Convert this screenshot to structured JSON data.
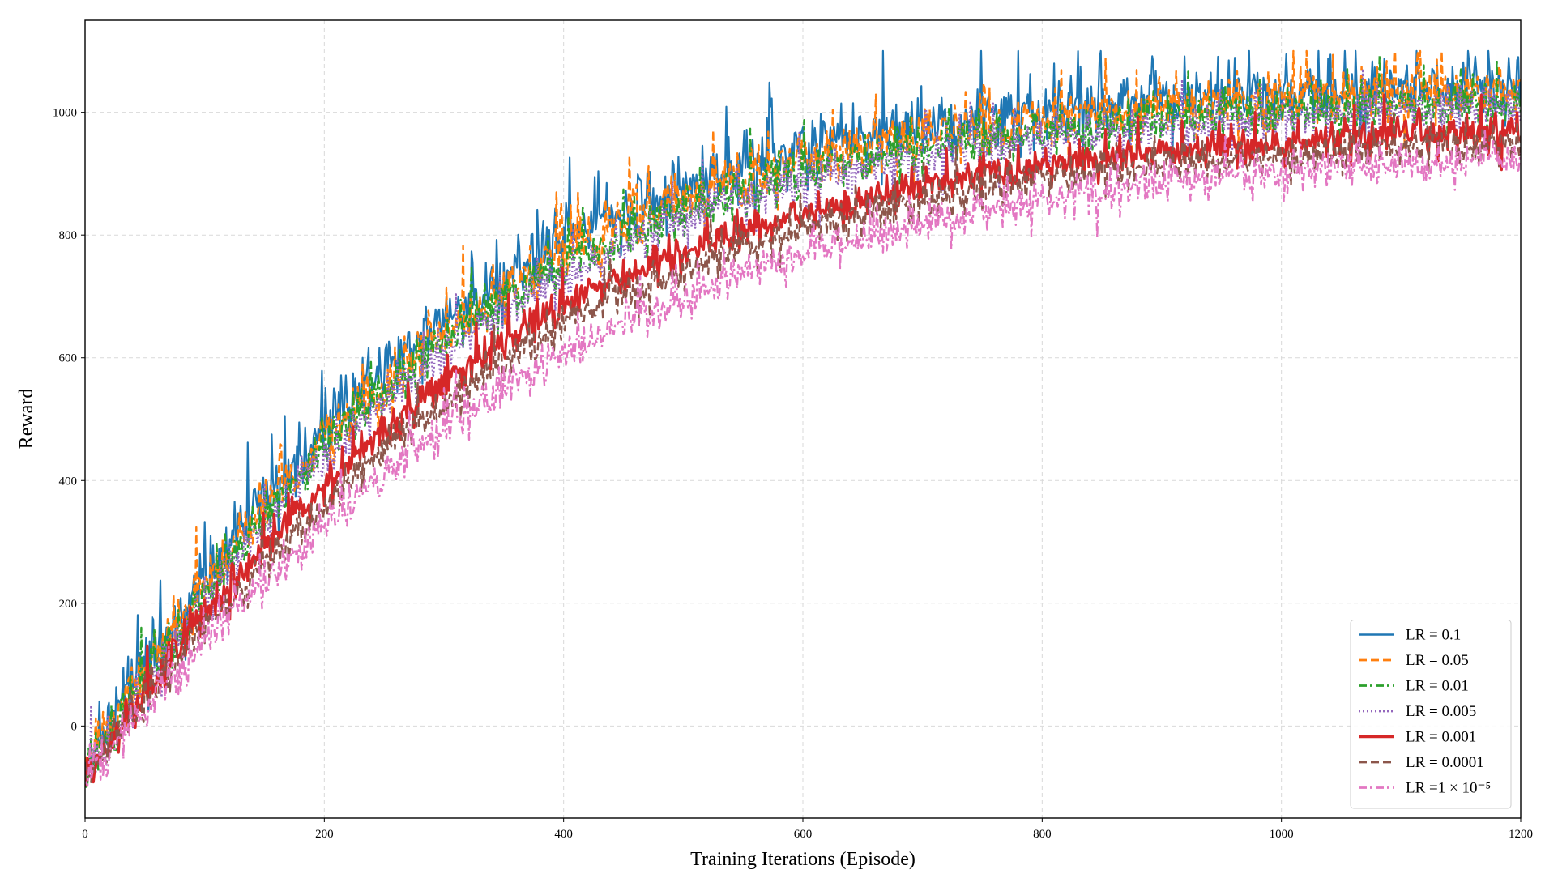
{
  "chart_data": {
    "type": "line",
    "title": "",
    "xlabel": "Training Iterations (Episode)",
    "ylabel": "Reward",
    "xlim": [
      0,
      1200
    ],
    "ylim": [
      -150,
      1150
    ],
    "xticks": [
      0,
      200,
      400,
      600,
      800,
      1000,
      1200
    ],
    "yticks": [
      0,
      200,
      400,
      600,
      800,
      1000
    ],
    "grid": true,
    "legend_position": "lower-right",
    "colors": {
      "axis": "#000000",
      "grid": "#d9d9d9",
      "legend_border": "#cccccc"
    },
    "series": [
      {
        "name": "LR = 0.1",
        "color": "#1f77b4",
        "dash": "solid",
        "x": [
          0,
          25,
          50,
          75,
          100,
          150,
          200,
          250,
          300,
          350,
          400,
          450,
          500,
          550,
          600,
          650,
          700,
          750,
          800,
          850,
          900,
          950,
          1000,
          1050,
          1100,
          1150,
          1200
        ],
        "y": [
          -60,
          20,
          95,
          170,
          245,
          370,
          480,
          580,
          660,
          730,
          790,
          840,
          880,
          912,
          938,
          958,
          975,
          990,
          1000,
          1010,
          1018,
          1024,
          1030,
          1034,
          1037,
          1039,
          1040
        ],
        "noise": 45,
        "min": -100,
        "max": 1100
      },
      {
        "name": "LR = 0.05",
        "color": "#ff7f0e",
        "dash": "dashed",
        "x": [
          0,
          25,
          50,
          75,
          100,
          150,
          200,
          250,
          300,
          350,
          400,
          450,
          500,
          550,
          600,
          650,
          700,
          750,
          800,
          850,
          900,
          950,
          1000,
          1050,
          1100,
          1150,
          1200
        ],
        "y": [
          -65,
          10,
          85,
          160,
          230,
          355,
          465,
          560,
          640,
          710,
          770,
          820,
          860,
          893,
          920,
          942,
          960,
          975,
          988,
          998,
          1007,
          1014,
          1020,
          1025,
          1029,
          1032,
          1034
        ],
        "noise": 40,
        "min": -100,
        "max": 1100
      },
      {
        "name": "LR = 0.01",
        "color": "#2ca02c",
        "dash": "dashdot",
        "x": [
          0,
          25,
          50,
          75,
          100,
          150,
          200,
          250,
          300,
          350,
          400,
          450,
          500,
          550,
          600,
          650,
          700,
          750,
          800,
          850,
          900,
          950,
          1000,
          1050,
          1100,
          1150,
          1200
        ],
        "y": [
          -70,
          0,
          75,
          150,
          215,
          340,
          450,
          545,
          625,
          695,
          750,
          800,
          840,
          873,
          900,
          922,
          940,
          955,
          968,
          979,
          988,
          995,
          1001,
          1006,
          1010,
          1013,
          1015
        ],
        "noise": 35,
        "min": -100,
        "max": 1100
      },
      {
        "name": "LR = 0.005",
        "color": "#9467bd",
        "dash": "dotted",
        "x": [
          0,
          25,
          50,
          75,
          100,
          150,
          200,
          250,
          300,
          350,
          400,
          450,
          500,
          550,
          600,
          650,
          700,
          750,
          800,
          850,
          900,
          950,
          1000,
          1050,
          1100,
          1150,
          1200
        ],
        "y": [
          -72,
          -5,
          65,
          140,
          205,
          325,
          435,
          530,
          610,
          678,
          735,
          785,
          825,
          858,
          886,
          909,
          928,
          944,
          957,
          968,
          978,
          986,
          993,
          998,
          1002,
          1005,
          1007
        ],
        "noise": 33,
        "min": -100,
        "max": 1100
      },
      {
        "name": "LR = 0.001",
        "color": "#d62728",
        "dash": "solid-thick",
        "x": [
          0,
          25,
          50,
          75,
          100,
          150,
          200,
          250,
          300,
          350,
          400,
          450,
          500,
          550,
          600,
          650,
          700,
          750,
          800,
          850,
          900,
          950,
          1000,
          1050,
          1100,
          1150,
          1200
        ],
        "y": [
          -75,
          -15,
          50,
          120,
          180,
          290,
          390,
          480,
          560,
          630,
          685,
          730,
          770,
          805,
          835,
          860,
          880,
          898,
          913,
          926,
          936,
          945,
          952,
          958,
          962,
          965,
          967
        ],
        "noise": 25,
        "min": -100,
        "max": 1100
      },
      {
        "name": "LR = 0.0001",
        "color": "#8c564b",
        "dash": "dashed",
        "x": [
          0,
          25,
          50,
          75,
          100,
          150,
          200,
          250,
          300,
          350,
          400,
          450,
          500,
          550,
          600,
          650,
          700,
          750,
          800,
          850,
          900,
          950,
          1000,
          1050,
          1100,
          1150,
          1200
        ],
        "y": [
          -78,
          -25,
          40,
          105,
          160,
          265,
          360,
          450,
          525,
          595,
          650,
          700,
          742,
          778,
          808,
          834,
          856,
          875,
          890,
          903,
          914,
          923,
          931,
          938,
          943,
          947,
          950
        ],
        "noise": 28,
        "min": -100,
        "max": 1100
      },
      {
        "name": "LR =1 × 10⁻⁵",
        "color": "#e377c2",
        "dash": "dashdot",
        "x": [
          0,
          25,
          50,
          75,
          100,
          150,
          200,
          250,
          300,
          350,
          400,
          450,
          500,
          550,
          600,
          650,
          700,
          750,
          800,
          850,
          900,
          950,
          1000,
          1050,
          1100,
          1150,
          1200
        ],
        "y": [
          -80,
          -35,
          25,
          85,
          140,
          235,
          325,
          410,
          485,
          550,
          605,
          655,
          698,
          735,
          767,
          795,
          820,
          840,
          858,
          873,
          886,
          897,
          906,
          913,
          919,
          924,
          927
        ],
        "noise": 28,
        "min": -100,
        "max": 1100
      }
    ]
  }
}
